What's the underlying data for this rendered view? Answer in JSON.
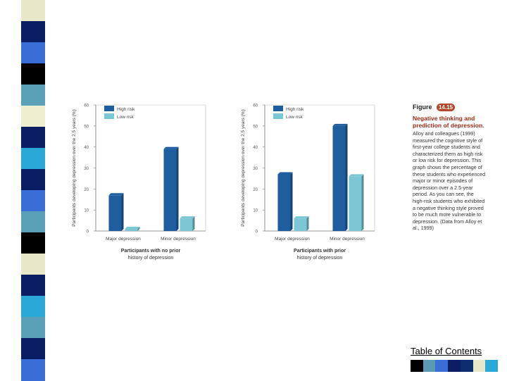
{
  "stripe_colors": [
    "#e8e8c8",
    "#0b1e63",
    "#3a6ed6",
    "#000000",
    "#5aa0b8",
    "#f0f0d0",
    "#0b1e63",
    "#2aa8d8",
    "#0b1e63",
    "#3a6ed6",
    "#5aa0b8",
    "#000000",
    "#e8e8c8",
    "#0b1e63",
    "#2aa8d8",
    "#5aa0b8",
    "#0b1e63",
    "#3a6ed6"
  ],
  "chart_data": [
    {
      "type": "bar",
      "ylabel": "Participants developing depression over the 2.5 years (%)",
      "xlabel_lines": [
        "Participants with no prior",
        "history of depression"
      ],
      "categories": [
        "Major depression",
        "Minor depression"
      ],
      "series": [
        {
          "name": "High risk",
          "values": [
            17,
            39
          ],
          "color": "#1f5e9e"
        },
        {
          "name": "Low risk",
          "values": [
            1,
            6
          ],
          "color": "#7cc7d6"
        }
      ],
      "ylim": [
        0,
        60
      ],
      "yticks": [
        0,
        10,
        20,
        30,
        40,
        50,
        60
      ],
      "legend": "top-left"
    },
    {
      "type": "bar",
      "ylabel": "Participants developing depression over the 2.5 years (%)",
      "xlabel_lines": [
        "Participants with prior",
        "history of depression"
      ],
      "categories": [
        "Major depression",
        "Minor depression"
      ],
      "series": [
        {
          "name": "High risk",
          "values": [
            27,
            50
          ],
          "color": "#1f5e9e"
        },
        {
          "name": "Low risk",
          "values": [
            6,
            26
          ],
          "color": "#7cc7d6"
        }
      ],
      "ylim": [
        0,
        60
      ],
      "yticks": [
        0,
        10,
        20,
        30,
        40,
        50,
        60
      ],
      "legend": "top-left"
    }
  ],
  "caption": {
    "figure_label": "Figure",
    "figure_number": "14.15",
    "title": "Negative thinking and prediction of depression.",
    "body": "Alloy and colleagues (1999) measured the cognitive style of first-year college students and characterized them as high risk or low risk for depression. This graph shows the percentage of these students who experienced major or minor episodes of depression over a 2.5-year period. As you can see, the high-risk students who exhibited a negative thinking style proved to be much more vulnerable to depression. (Data from Alloy et al., 1999)"
  },
  "toc_label": "Table of Contents",
  "swatch_colors": [
    "#000000",
    "#5a9ab0",
    "#3a6ed6",
    "#0b1e63",
    "#0b2e6e",
    "#e8e8c8",
    "#2aa8d8"
  ]
}
